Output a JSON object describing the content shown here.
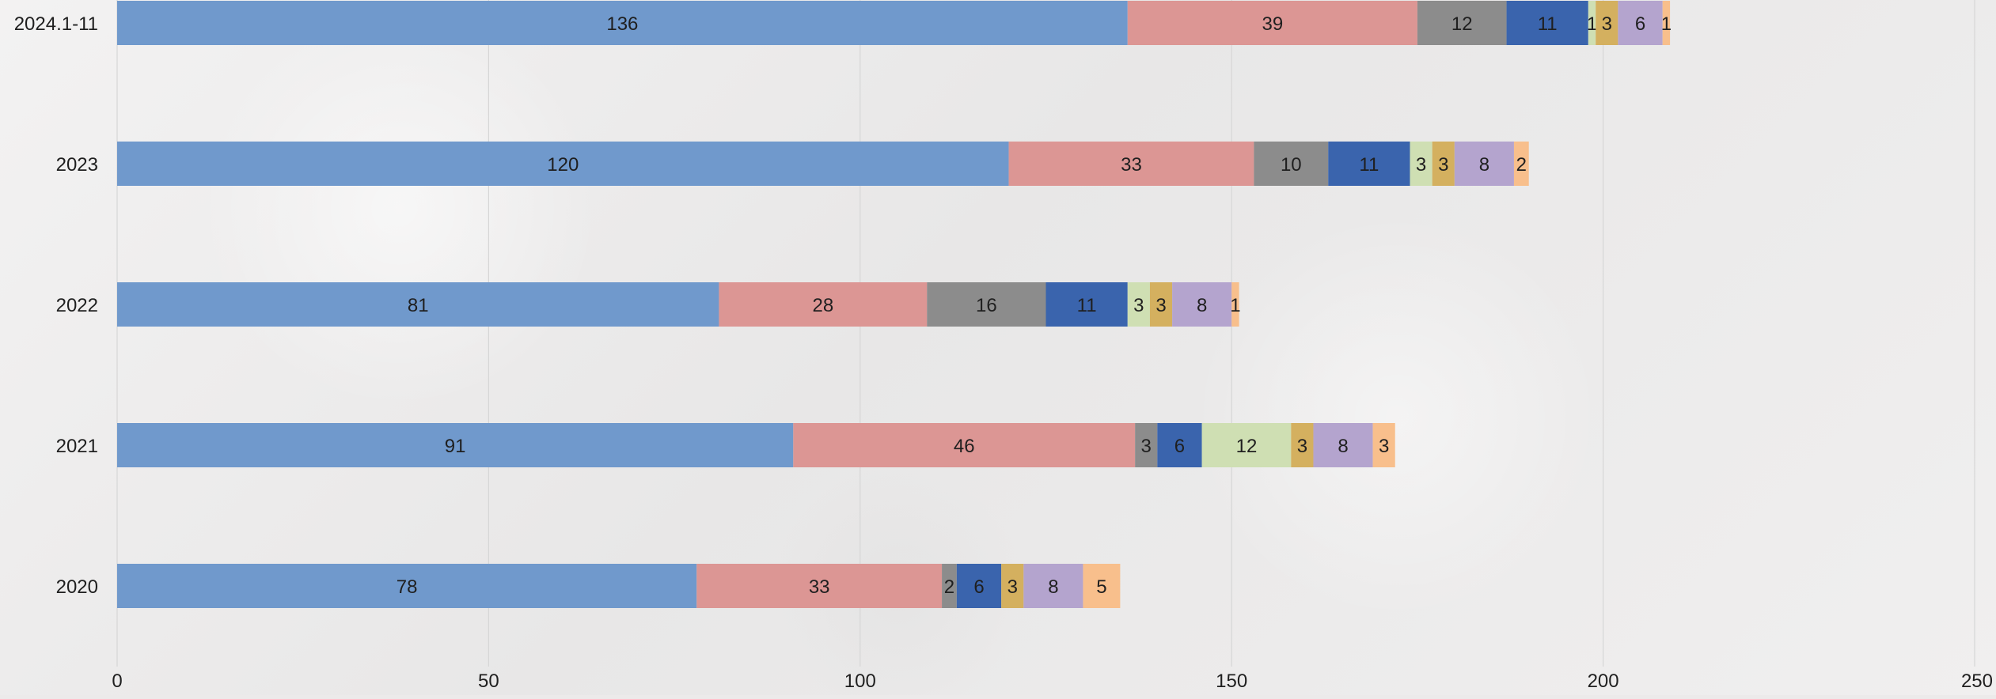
{
  "chart_data": {
    "type": "bar",
    "orientation": "horizontal",
    "stacked": true,
    "categories": [
      "2024.1-11",
      "2023",
      "2022",
      "2021",
      "2020"
    ],
    "series": [
      {
        "values": [
          136,
          120,
          81,
          91,
          78
        ],
        "color": "#7099cc"
      },
      {
        "values": [
          39,
          33,
          28,
          46,
          33
        ],
        "color": "#dc9694"
      },
      {
        "values": [
          12,
          10,
          16,
          3,
          2
        ],
        "color": "#8c8c8c"
      },
      {
        "values": [
          11,
          11,
          11,
          6,
          6
        ],
        "color": "#3a64ad"
      },
      {
        "values": [
          1,
          3,
          3,
          12,
          0
        ],
        "color": "#cfdfb3"
      },
      {
        "values": [
          3,
          3,
          3,
          3,
          3
        ],
        "color": "#d4b05f"
      },
      {
        "values": [
          6,
          8,
          8,
          8,
          8
        ],
        "color": "#b4a4ce"
      },
      {
        "values": [
          1,
          2,
          1,
          3,
          5
        ],
        "color": "#f8bf8c"
      }
    ],
    "xlim": [
      0,
      250
    ],
    "x_ticks": [
      "0",
      "50",
      "100",
      "150",
      "200",
      "250"
    ],
    "grid": true,
    "title": "",
    "xlabel": "",
    "ylabel": ""
  }
}
